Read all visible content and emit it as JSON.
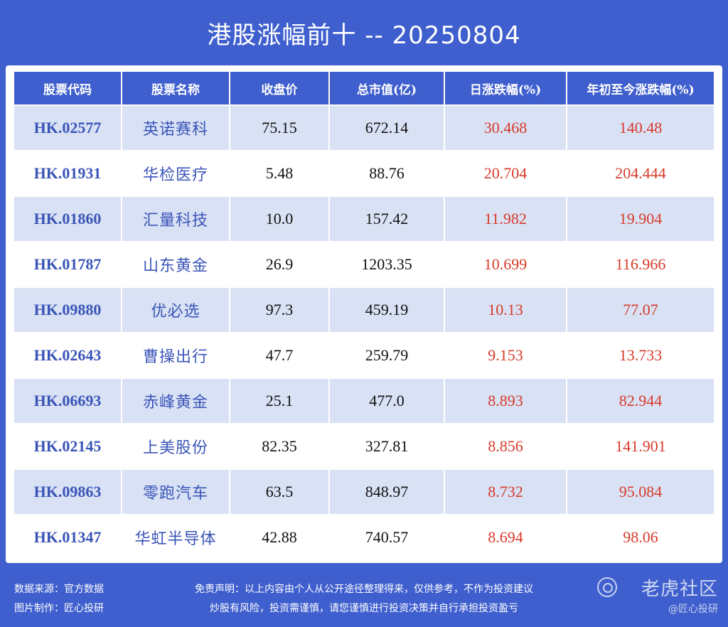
{
  "title": "港股涨幅前十 -- 20250804",
  "table": {
    "headers": [
      "股票代码",
      "股票名称",
      "收盘价",
      "总市值(亿)",
      "日涨跌幅(%)",
      "年初至今涨跌幅(%)"
    ],
    "rows": [
      {
        "code": "HK.02577",
        "name": "英诺赛科",
        "close": "75.15",
        "cap": "672.14",
        "day": "30.468",
        "ytd": "140.48"
      },
      {
        "code": "HK.01931",
        "name": "华检医疗",
        "close": "5.48",
        "cap": "88.76",
        "day": "20.704",
        "ytd": "204.444"
      },
      {
        "code": "HK.01860",
        "name": "汇量科技",
        "close": "10.0",
        "cap": "157.42",
        "day": "11.982",
        "ytd": "19.904"
      },
      {
        "code": "HK.01787",
        "name": "山东黄金",
        "close": "26.9",
        "cap": "1203.35",
        "day": "10.699",
        "ytd": "116.966"
      },
      {
        "code": "HK.09880",
        "name": "优必选",
        "close": "97.3",
        "cap": "459.19",
        "day": "10.13",
        "ytd": "77.07"
      },
      {
        "code": "HK.02643",
        "name": "曹操出行",
        "close": "47.7",
        "cap": "259.79",
        "day": "9.153",
        "ytd": "13.733"
      },
      {
        "code": "HK.06693",
        "name": "赤峰黄金",
        "close": "25.1",
        "cap": "477.0",
        "day": "8.893",
        "ytd": "82.944"
      },
      {
        "code": "HK.02145",
        "name": "上美股份",
        "close": "82.35",
        "cap": "327.81",
        "day": "8.856",
        "ytd": "141.901"
      },
      {
        "code": "HK.09863",
        "name": "零跑汽车",
        "close": "63.5",
        "cap": "848.97",
        "day": "8.732",
        "ytd": "95.084"
      },
      {
        "code": "HK.01347",
        "name": "华虹半导体",
        "close": "42.88",
        "cap": "740.57",
        "day": "8.694",
        "ytd": "98.06"
      }
    ]
  },
  "footer": {
    "source": "数据来源：官方数据",
    "maker": "图片制作：匠心投研",
    "disclaimer_line1": "免责声明：以上内容由个人从公开途径整理得来，仅供参考，不作为投资建议",
    "disclaimer_line2": "炒股有风险，投资需谨慎，请您谨慎进行投资决策并自行承担投资盈亏",
    "watermark_logo": "老虎社区",
    "watermark_sub": "@匠心投研"
  },
  "colors": {
    "background": "#3f5fce",
    "header_cell": "#3f5fce",
    "row_stripe": "#d9e1f4",
    "code_text": "#3a55b8",
    "positive_text": "#d63a2a"
  },
  "icons": {
    "watermark": "tiger-community-logo-icon"
  }
}
